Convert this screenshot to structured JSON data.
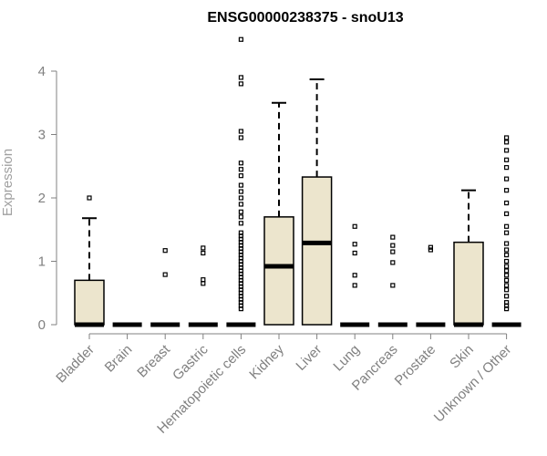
{
  "chart_data": {
    "type": "box",
    "title": "ENSG00000238375 - snoU13",
    "xlabel": "",
    "ylabel": "Expression",
    "ylim": [
      0,
      4.5
    ],
    "yticks": [
      "0",
      "1",
      "2",
      "3",
      "4"
    ],
    "categories": [
      "Bladder",
      "Brain",
      "Breast",
      "Gastric",
      "Hematopoietic cells",
      "Kidney",
      "Liver",
      "Lung",
      "Pancreas",
      "Prostate",
      "Skin",
      "Unknown / Other"
    ],
    "boxes": [
      {
        "q1": 0,
        "median": 0,
        "q3": 0.7,
        "whisker_low": 0,
        "whisker_high": 1.68,
        "outliers": [
          2.0
        ]
      },
      {
        "q1": 0,
        "median": 0,
        "q3": 0,
        "whisker_low": 0,
        "whisker_high": 0,
        "outliers": []
      },
      {
        "q1": 0,
        "median": 0,
        "q3": 0,
        "whisker_low": 0,
        "whisker_high": 0,
        "outliers": [
          0.79,
          1.17
        ]
      },
      {
        "q1": 0,
        "median": 0,
        "q3": 0,
        "whisker_low": 0,
        "whisker_high": 0,
        "outliers": [
          0.65,
          0.71,
          1.13,
          1.21
        ]
      },
      {
        "q1": 0,
        "median": 0,
        "q3": 0,
        "whisker_low": 0,
        "whisker_high": 0,
        "outliers": [
          0.25,
          0.3,
          0.35,
          0.4,
          0.45,
          0.5,
          0.55,
          0.6,
          0.65,
          0.7,
          0.75,
          0.8,
          0.85,
          0.9,
          0.95,
          1.0,
          1.05,
          1.1,
          1.15,
          1.2,
          1.25,
          1.3,
          1.35,
          1.4,
          1.45,
          1.6,
          1.7,
          1.78,
          1.9,
          2.0,
          2.1,
          2.2,
          2.35,
          2.45,
          2.55,
          2.95,
          3.05,
          3.8,
          3.9,
          4.5
        ]
      },
      {
        "q1": 0,
        "median": 0.92,
        "q3": 1.7,
        "whisker_low": 0,
        "whisker_high": 3.5,
        "outliers": []
      },
      {
        "q1": 0,
        "median": 1.29,
        "q3": 2.33,
        "whisker_low": 0,
        "whisker_high": 3.87,
        "outliers": []
      },
      {
        "q1": 0,
        "median": 0,
        "q3": 0,
        "whisker_low": 0,
        "whisker_high": 0,
        "outliers": [
          0.62,
          0.78,
          1.13,
          1.27,
          1.55
        ]
      },
      {
        "q1": 0,
        "median": 0,
        "q3": 0,
        "whisker_low": 0,
        "whisker_high": 0,
        "outliers": [
          0.62,
          0.98,
          1.15,
          1.25,
          1.38
        ]
      },
      {
        "q1": 0,
        "median": 0,
        "q3": 0,
        "whisker_low": 0,
        "whisker_high": 0,
        "outliers": [
          1.18,
          1.22
        ]
      },
      {
        "q1": 0,
        "median": 0,
        "q3": 1.3,
        "whisker_low": 0,
        "whisker_high": 2.12,
        "outliers": []
      },
      {
        "q1": 0,
        "median": 0,
        "q3": 0,
        "whisker_low": 0,
        "whisker_high": 0,
        "outliers": [
          0.25,
          0.3,
          0.35,
          0.45,
          0.55,
          0.62,
          0.7,
          0.78,
          0.85,
          0.92,
          1.0,
          1.1,
          1.18,
          1.28,
          1.45,
          1.55,
          1.75,
          1.92,
          2.12,
          2.3,
          2.48,
          2.6,
          2.75,
          2.88,
          2.95
        ]
      }
    ],
    "box_fill": "#ece5cd",
    "outlier_color": "#000000",
    "grid": false,
    "legend": "none"
  }
}
